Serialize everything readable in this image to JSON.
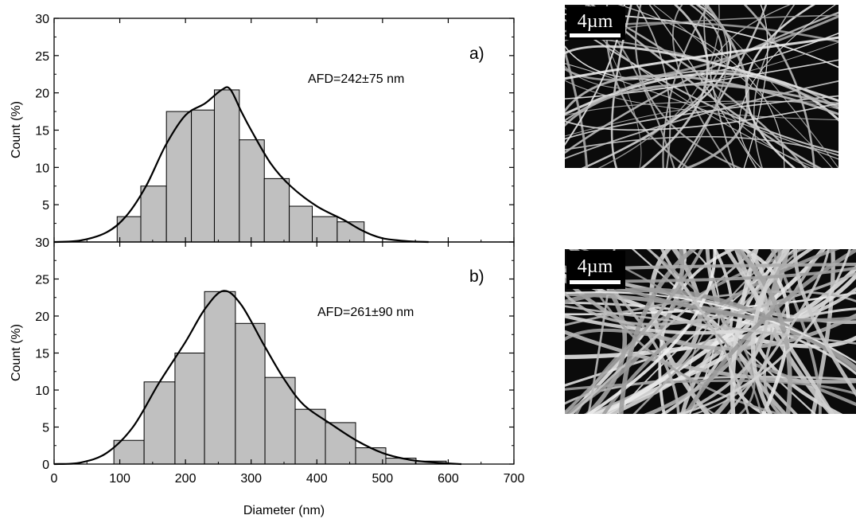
{
  "chart_data": [
    {
      "panel": "a)",
      "type": "histogram",
      "annotation": "AFD=242±75 nm",
      "ylabel": "Count (%)",
      "xlim": [
        0,
        700
      ],
      "ylim": [
        0,
        30
      ],
      "yticks": [
        "",
        "5",
        "10",
        "15",
        "20",
        "25",
        "30"
      ],
      "bins": [
        {
          "x0": 96,
          "x1": 132,
          "value": 3.4
        },
        {
          "x0": 132,
          "x1": 171,
          "value": 7.5
        },
        {
          "x0": 171,
          "x1": 209,
          "value": 17.5
        },
        {
          "x0": 209,
          "x1": 244,
          "value": 17.7
        },
        {
          "x0": 244,
          "x1": 282,
          "value": 20.4
        },
        {
          "x0": 282,
          "x1": 320,
          "value": 13.7
        },
        {
          "x0": 320,
          "x1": 358,
          "value": 8.5
        },
        {
          "x0": 358,
          "x1": 393,
          "value": 4.8
        },
        {
          "x0": 393,
          "x1": 431,
          "value": 3.4
        },
        {
          "x0": 431,
          "x1": 472,
          "value": 2.7
        }
      ],
      "fit_curve": [
        [
          0,
          0
        ],
        [
          40,
          0.2
        ],
        [
          80,
          1.3
        ],
        [
          110,
          3.5
        ],
        [
          140,
          7.5
        ],
        [
          170,
          13
        ],
        [
          200,
          17
        ],
        [
          230,
          18.6
        ],
        [
          255,
          20.4
        ],
        [
          268,
          20.5
        ],
        [
          285,
          17.5
        ],
        [
          300,
          15
        ],
        [
          330,
          10.5
        ],
        [
          360,
          7.5
        ],
        [
          400,
          4.8
        ],
        [
          440,
          3
        ],
        [
          470,
          1.5
        ],
        [
          500,
          0.5
        ],
        [
          540,
          0.1
        ],
        [
          570,
          0
        ]
      ]
    },
    {
      "panel": "b)",
      "type": "histogram",
      "annotation": "AFD=261±90 nm",
      "ylabel": "Count (%)",
      "xlabel": "Diameter (nm)",
      "xlim": [
        0,
        700
      ],
      "ylim": [
        0,
        30
      ],
      "yticks": [
        "0",
        "5",
        "10",
        "15",
        "20",
        "25",
        "30"
      ],
      "xticks": [
        "0",
        "100",
        "200",
        "300",
        "400",
        "500",
        "600",
        "700"
      ],
      "bins": [
        {
          "x0": 91,
          "x1": 137,
          "value": 3.2
        },
        {
          "x0": 137,
          "x1": 184,
          "value": 11.1
        },
        {
          "x0": 184,
          "x1": 229,
          "value": 15.0
        },
        {
          "x0": 229,
          "x1": 276,
          "value": 23.3
        },
        {
          "x0": 276,
          "x1": 321,
          "value": 19.0
        },
        {
          "x0": 321,
          "x1": 367,
          "value": 11.7
        },
        {
          "x0": 367,
          "x1": 413,
          "value": 7.4
        },
        {
          "x0": 413,
          "x1": 459,
          "value": 5.6
        },
        {
          "x0": 459,
          "x1": 505,
          "value": 2.2
        },
        {
          "x0": 505,
          "x1": 551,
          "value": 0.8
        },
        {
          "x0": 551,
          "x1": 597,
          "value": 0.4
        }
      ],
      "fit_curve": [
        [
          0,
          0
        ],
        [
          40,
          0.2
        ],
        [
          80,
          1.5
        ],
        [
          120,
          5
        ],
        [
          160,
          11
        ],
        [
          200,
          16.5
        ],
        [
          230,
          21
        ],
        [
          258,
          23.4
        ],
        [
          285,
          21.5
        ],
        [
          320,
          16
        ],
        [
          350,
          11.5
        ],
        [
          380,
          8
        ],
        [
          420,
          5.5
        ],
        [
          460,
          3.2
        ],
        [
          500,
          1.5
        ],
        [
          540,
          0.6
        ],
        [
          580,
          0.2
        ],
        [
          620,
          0
        ]
      ]
    }
  ],
  "images": [
    {
      "scale_label": "4µm"
    },
    {
      "scale_label": "4µm"
    }
  ],
  "colors": {
    "bar_fill": "#c0c0c0",
    "bar_stroke": "#000000",
    "curve": "#000000",
    "sem_background": "#0b0b0b"
  }
}
